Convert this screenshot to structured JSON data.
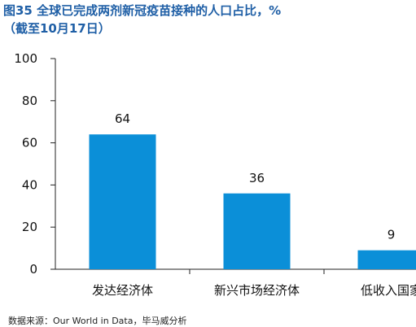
{
  "header": {
    "title_line1": "图35 全球已完成两剂新冠疫苗接种的人口占比，%",
    "title_line2": "（截至10月17日）"
  },
  "footer": {
    "source": "数据来源：Our World in Data，毕马威分析"
  },
  "colors": {
    "bar": "#0b8fd8",
    "title": "#1f5fa6",
    "axis": "#222222"
  },
  "chart_data": {
    "type": "bar",
    "categories": [
      "发达经济体",
      "新兴市场经济体",
      "低收入国家"
    ],
    "values": [
      64,
      36,
      9
    ],
    "data_labels": [
      "64",
      "36",
      "9"
    ],
    "title": "图35 全球已完成两剂新冠疫苗接种的人口占比，%",
    "subtitle": "（截至10月17日）",
    "xlabel": "",
    "ylabel": "",
    "ylim": [
      0,
      100
    ],
    "yticks": [
      "0",
      "20",
      "40",
      "60",
      "80",
      "100"
    ],
    "grid": false,
    "legend": "none"
  }
}
